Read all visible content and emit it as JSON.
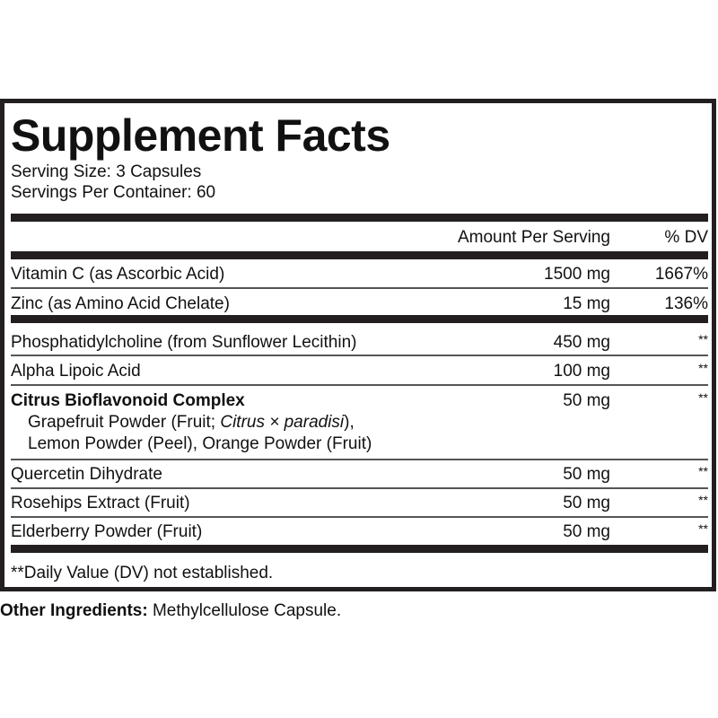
{
  "title": "Supplement Facts",
  "serving_size": "Serving Size: 3 Capsules",
  "servings_per_container": "Servings Per Container: 60",
  "header": {
    "amount": "Amount Per Serving",
    "dv": "% DV"
  },
  "vitamins": [
    {
      "name": "Vitamin C (as Ascorbic Acid)",
      "amount": "1500 mg",
      "dv": "1667%"
    },
    {
      "name": "Zinc (as Amino Acid Chelate)",
      "amount": "15 mg",
      "dv": "136%"
    }
  ],
  "others": [
    {
      "name": "Phosphatidylcholine (from Sunflower Lecithin)",
      "amount": "450 mg",
      "dv": "**"
    },
    {
      "name": "Alpha Lipoic Acid",
      "amount": "100 mg",
      "dv": "**"
    },
    {
      "name": "Citrus Bioflavonoid Complex",
      "amount": "50 mg",
      "dv": "**",
      "sub1_a": "Grapefruit Powder (Fruit; ",
      "sub1_italic": "Citrus × paradisi",
      "sub1_b": "),",
      "sub2": "Lemon Powder (Peel), Orange Powder (Fruit)"
    },
    {
      "name": "Quercetin Dihydrate",
      "amount": "50 mg",
      "dv": "**"
    },
    {
      "name": "Rosehips Extract (Fruit)",
      "amount": "50 mg",
      "dv": "**"
    },
    {
      "name": "Elderberry Powder (Fruit)",
      "amount": "50 mg",
      "dv": "**"
    }
  ],
  "footnote": "**Daily Value (DV) not established.",
  "other_ingredients": {
    "label": "Other Ingredients:",
    "value": " Methylcellulose Capsule."
  }
}
